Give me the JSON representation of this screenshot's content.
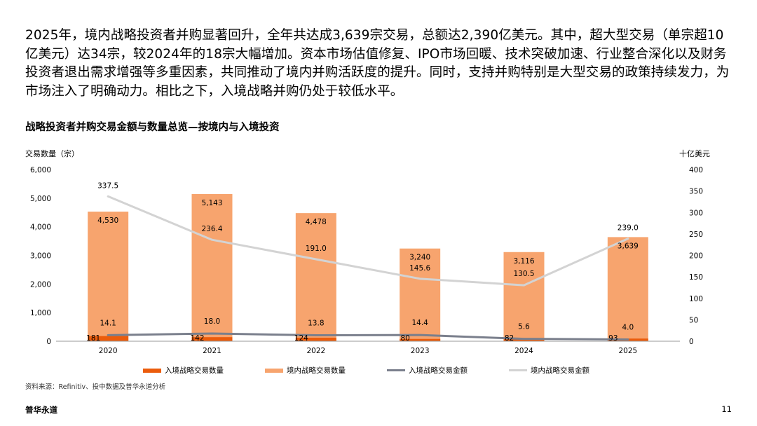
{
  "page": {
    "intro": "2025年，境内战略投资者并购显著回升，全年共达成3,639宗交易，总额达2,390亿美元。其中，超大型交易（单宗超10亿美元）达34宗，较2024年的18宗大幅增加。资本市场估值修复、IPO市场回暖、技术突破加速、行业整合深化以及财务投资者退出需求增强等多重因素，共同推动了境内并购活跃度的提升。同时，支持并购特别是大型交易的政策持续发力，为市场注入了明确动力。相比之下，入境战略并购仍处于较低水平。",
    "source": "资料来源：Refinitiv、投中数据及普华永道分析",
    "brand": "普华永道",
    "page_number": "11"
  },
  "chart_data": {
    "type": "bar",
    "title": "战略投资者并购交易金额与数量总览—按境内与入境投资",
    "ylabel": "交易数量（宗）",
    "y2label": "十亿美元",
    "ylim": [
      0,
      6000
    ],
    "y2lim": [
      0,
      400
    ],
    "yticks": [
      "0",
      "1,000",
      "2,000",
      "3,000",
      "4,000",
      "5,000",
      "6,000"
    ],
    "y2ticks": [
      "0",
      "50",
      "100",
      "150",
      "200",
      "250",
      "300",
      "350",
      "400"
    ],
    "categories": [
      "2020",
      "2021",
      "2022",
      "2023",
      "2024",
      "2025"
    ],
    "series": [
      {
        "name": "入境战略交易数量",
        "kind": "bar",
        "axis": "left",
        "color": "#EB5C0C",
        "values": [
          181,
          142,
          124,
          80,
          82,
          93
        ],
        "labels": [
          "181",
          "142",
          "124",
          "80",
          "82",
          "93"
        ]
      },
      {
        "name": "境内战略交易数量",
        "kind": "bar",
        "axis": "left",
        "color": "#F7A46E",
        "values": [
          4530,
          5143,
          4478,
          3240,
          3116,
          3639
        ],
        "labels": [
          "4,530",
          "5,143",
          "4,478",
          "3,240",
          "3,116",
          "3,639"
        ]
      },
      {
        "name": "入境战略交易金额",
        "kind": "line",
        "axis": "right",
        "color": "#7A7F8C",
        "values": [
          14.1,
          18.0,
          13.8,
          14.4,
          5.6,
          4.0
        ],
        "labels": [
          "14.1",
          "18.0",
          "13.8",
          "14.4",
          "5.6",
          "4.0"
        ]
      },
      {
        "name": "境内战略交易金额",
        "kind": "line",
        "axis": "right",
        "color": "#D3D3D3",
        "values": [
          337.5,
          236.4,
          191.0,
          145.6,
          130.5,
          239.0
        ],
        "labels": [
          "337.5",
          "236.4",
          "191.0",
          "145.6",
          "130.5",
          "239.0"
        ]
      }
    ],
    "grid": false,
    "legend_position": "bottom"
  }
}
